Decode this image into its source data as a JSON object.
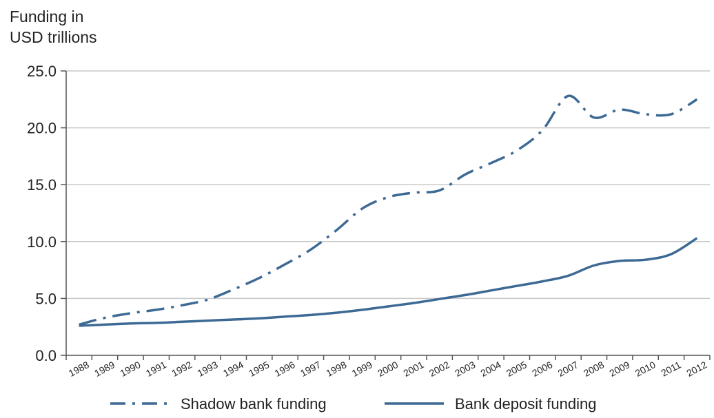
{
  "chart_data": {
    "type": "line",
    "ylabel_lines": [
      "Funding in",
      "USD trillions"
    ],
    "ylim": [
      0,
      25
    ],
    "yticks": [
      "0.0",
      "5.0",
      "10.0",
      "15.0",
      "20.0",
      "25.0"
    ],
    "ytick_values": [
      0,
      5,
      10,
      15,
      20,
      25
    ],
    "x": [
      "1988",
      "1989",
      "1990",
      "1991",
      "1992",
      "1993",
      "1994",
      "1995",
      "1996",
      "1997",
      "1998",
      "1999",
      "2000",
      "2001",
      "2002",
      "2003",
      "2004",
      "2005",
      "2006",
      "2007",
      "2008",
      "2009",
      "2010",
      "2011",
      "2012"
    ],
    "grid": true,
    "legend_position": "bottom",
    "series": [
      {
        "name": "Shadow bank funding",
        "style": "dash-dot",
        "color": "#3d6a94",
        "values": [
          2.7,
          3.3,
          3.7,
          4.0,
          4.4,
          4.9,
          5.8,
          6.8,
          8.0,
          9.3,
          11.0,
          12.9,
          13.9,
          14.3,
          14.5,
          15.9,
          16.9,
          18.0,
          19.8,
          22.8,
          20.9,
          21.6,
          21.2,
          21.2,
          22.5
        ]
      },
      {
        "name": "Bank deposit funding",
        "style": "solid",
        "color": "#3d6a94",
        "values": [
          2.6,
          2.7,
          2.8,
          2.85,
          2.95,
          3.05,
          3.15,
          3.25,
          3.4,
          3.55,
          3.75,
          4.0,
          4.3,
          4.6,
          4.95,
          5.3,
          5.7,
          6.1,
          6.5,
          7.0,
          7.9,
          8.3,
          8.4,
          8.9,
          10.3
        ]
      }
    ]
  }
}
